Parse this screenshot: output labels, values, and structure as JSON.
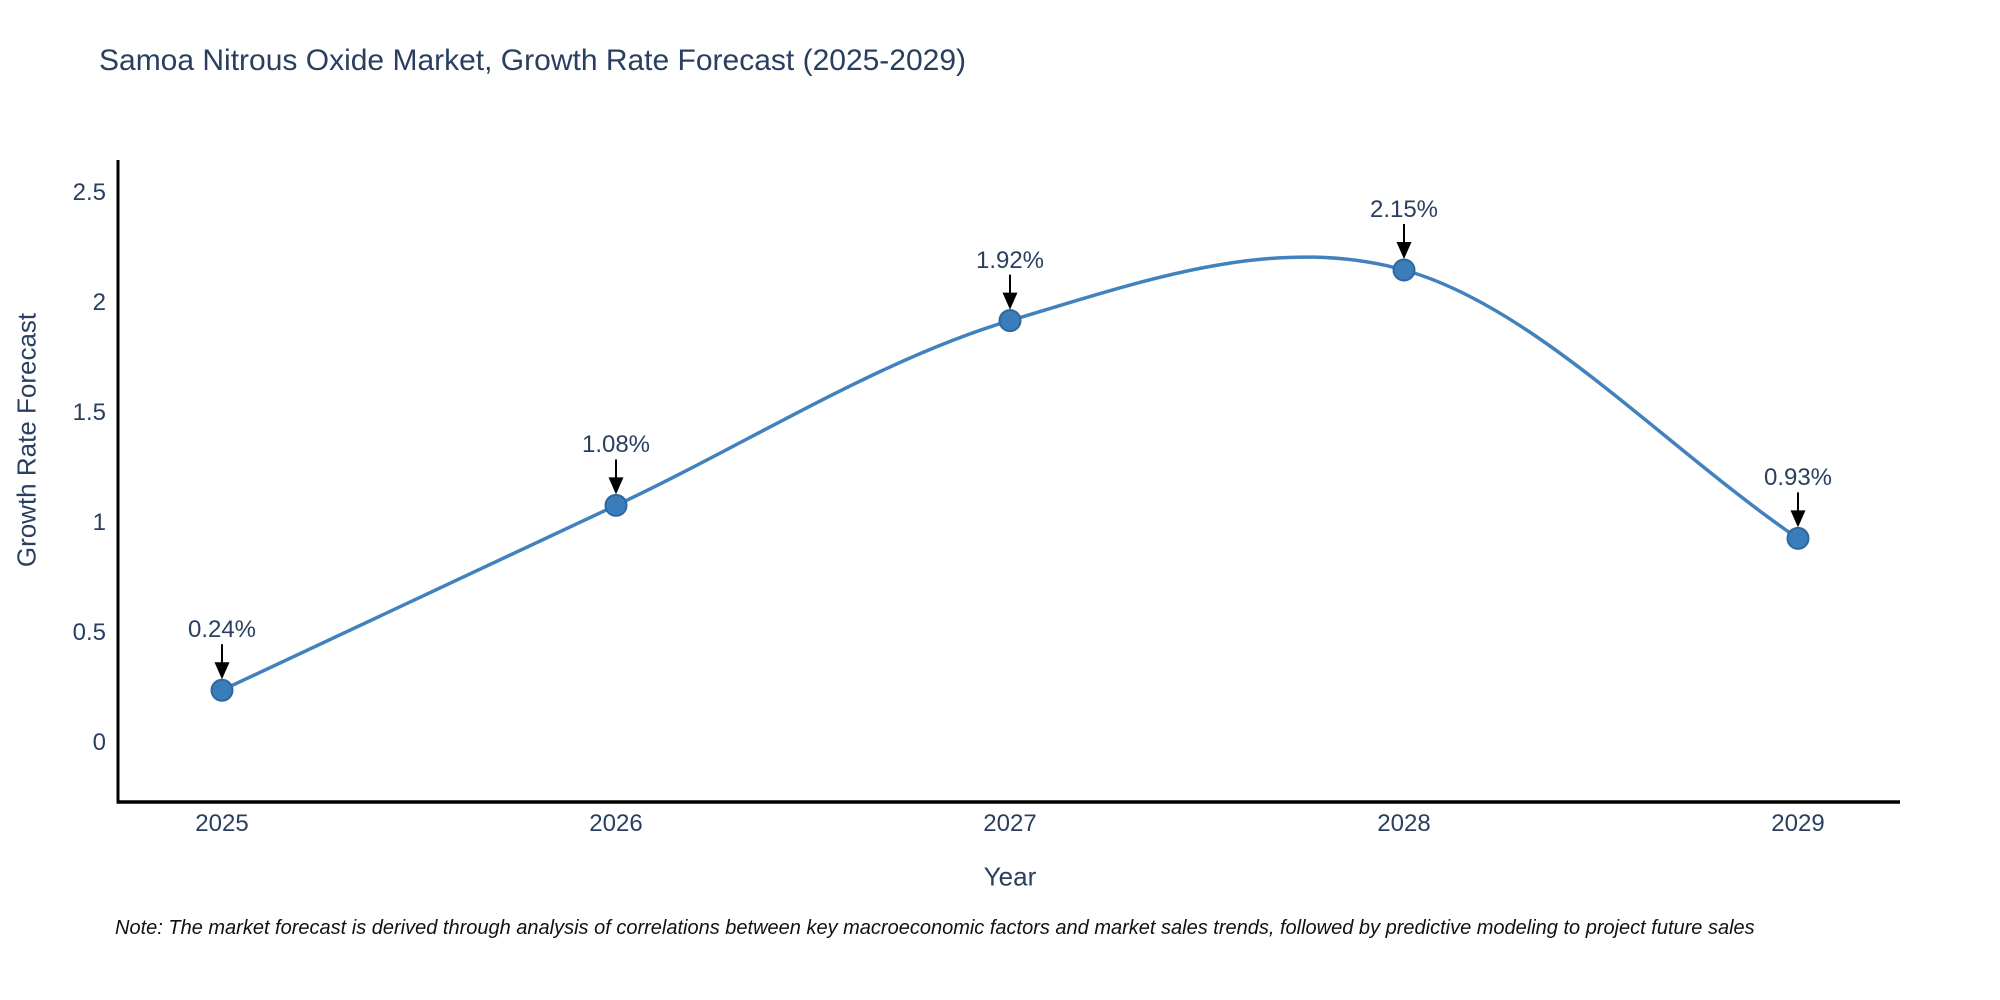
{
  "page": {
    "note": "Note: The market forecast is derived through analysis of correlations between key macroeconomic factors and market sales trends, followed by predictive modeling to project future sales"
  },
  "chart_data": {
    "type": "line",
    "line_shape": "spline",
    "title": "Samoa Nitrous Oxide Market, Growth Rate Forecast (2025-2029)",
    "xlabel": "Year",
    "ylabel": "Growth Rate Forecast",
    "categories": [
      "2025",
      "2026",
      "2027",
      "2028",
      "2029"
    ],
    "values": [
      0.24,
      1.08,
      1.92,
      2.15,
      0.93
    ],
    "point_labels": [
      "0.24%",
      "1.08%",
      "1.92%",
      "2.15%",
      "0.93%"
    ],
    "yticks": [
      "0",
      "0.5",
      "1",
      "1.5",
      "2",
      "2.5"
    ],
    "ytick_values": [
      0,
      0.5,
      1,
      1.5,
      2,
      2.5
    ],
    "ylim": [
      -0.27,
      2.65
    ],
    "grid": false,
    "legend": "none",
    "annotation_style": "value label with downward black arrow above each point",
    "colors": {
      "line": "#4182BE",
      "marker_fill": "#3B7CBB",
      "marker_edge": "#2E689F",
      "axis": "#000000",
      "text": "#2a3f5f",
      "arrow": "#000000",
      "background": "#ffffff"
    }
  }
}
